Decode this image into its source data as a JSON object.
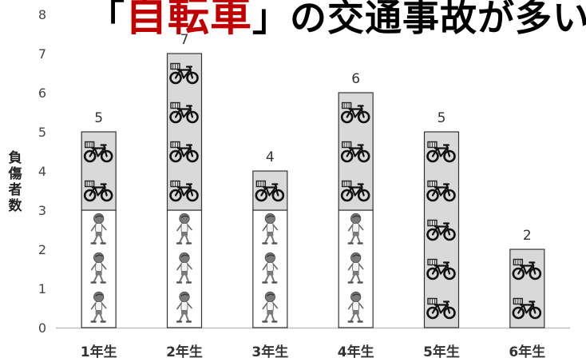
{
  "title": {
    "prefix": "「",
    "highlight": "自転車",
    "suffix": "」の交通事故が多い"
  },
  "chart_data": {
    "type": "bar",
    "stacked": true,
    "categories": [
      "1年生",
      "2年生",
      "3年生",
      "4年生",
      "5年生",
      "6年生"
    ],
    "series": [
      {
        "values": [
          3,
          3,
          3,
          3,
          0,
          0
        ],
        "icon": "pedestrian-child-icon",
        "color": "#ffffff"
      },
      {
        "values": [
          2,
          4,
          1,
          3,
          5,
          2
        ],
        "icon": "bicycle-icon",
        "color": "#d9d9d9"
      }
    ],
    "totals": [
      5,
      7,
      4,
      6,
      5,
      2
    ],
    "ylabel": "負傷者数",
    "ylabel_chars": [
      "負",
      "傷",
      "者",
      "数"
    ],
    "ylim": [
      0,
      8
    ],
    "yticks": [
      "0",
      "1",
      "2",
      "3",
      "4",
      "5",
      "6",
      "7",
      "8"
    ],
    "grid": false,
    "legend": "none"
  }
}
